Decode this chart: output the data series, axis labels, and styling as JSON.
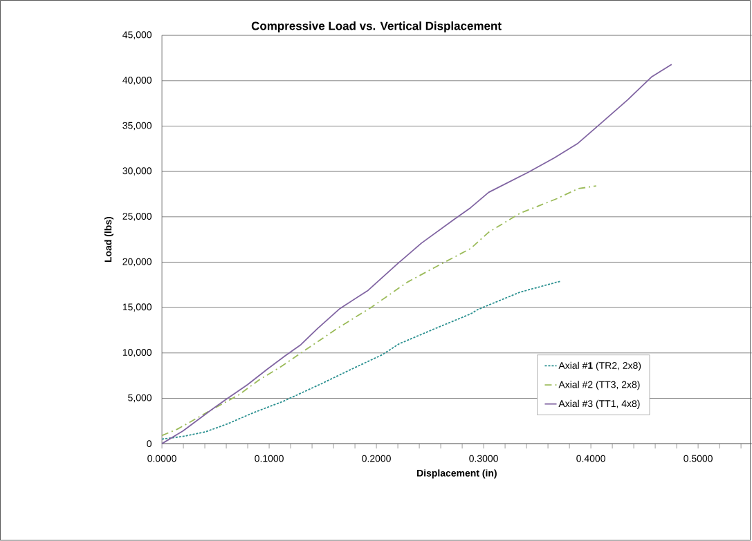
{
  "chart_data": {
    "type": "line",
    "title": "Compressive Load vs. Vertical Displacement",
    "xlabel": "Displacement (in)",
    "ylabel": "Load (lbs)",
    "xlim": [
      0,
      0.55
    ],
    "ylim": [
      0,
      45000
    ],
    "xticks": [
      {
        "value": 0,
        "label": "0.0000"
      },
      {
        "value": 0.02,
        "label": null
      },
      {
        "value": 0.04,
        "label": null
      },
      {
        "value": 0.06,
        "label": null
      },
      {
        "value": 0.08,
        "label": null
      },
      {
        "value": 0.1,
        "label": "0.1000"
      },
      {
        "value": 0.12,
        "label": null
      },
      {
        "value": 0.14,
        "label": null
      },
      {
        "value": 0.16,
        "label": null
      },
      {
        "value": 0.18,
        "label": null
      },
      {
        "value": 0.2,
        "label": "0.2000"
      },
      {
        "value": 0.22,
        "label": null
      },
      {
        "value": 0.24,
        "label": null
      },
      {
        "value": 0.26,
        "label": null
      },
      {
        "value": 0.28,
        "label": null
      },
      {
        "value": 0.3,
        "label": "0.3000"
      },
      {
        "value": 0.32,
        "label": null
      },
      {
        "value": 0.34,
        "label": null
      },
      {
        "value": 0.36,
        "label": null
      },
      {
        "value": 0.38,
        "label": null
      },
      {
        "value": 0.4,
        "label": "0.4000"
      },
      {
        "value": 0.42,
        "label": null
      },
      {
        "value": 0.44,
        "label": null
      },
      {
        "value": 0.46,
        "label": null
      },
      {
        "value": 0.48,
        "label": null
      },
      {
        "value": 0.5,
        "label": "0.5000"
      },
      {
        "value": 0.52,
        "label": null
      },
      {
        "value": 0.54,
        "label": null
      }
    ],
    "yticks": [
      0,
      {
        "value": 5000,
        "label": "5,000"
      },
      {
        "value": 10000,
        "label": "10,000"
      },
      {
        "value": 15000,
        "label": "15,000"
      },
      {
        "value": 20000,
        "label": "20,000"
      },
      {
        "value": 25000,
        "label": "25,000"
      },
      {
        "value": 30000,
        "label": "30,000"
      },
      {
        "value": 35000,
        "label": "35,000"
      },
      {
        "value": 40000,
        "label": "40,000"
      },
      {
        "value": 45000,
        "label": "45,000"
      }
    ],
    "grid": "y",
    "legend": "bottom right",
    "series": [
      {
        "name": "Axial #**1** (TR2, 2x8)",
        "color": "#2a9090",
        "line_style": "dotted",
        "x": [
          0,
          0.0196,
          0.0406,
          0.0615,
          0.085,
          0.1138,
          0.1504,
          0.1766,
          0.2054,
          0.2211,
          0.2551,
          0.2878,
          0.2949,
          0.334,
          0.3683,
          0.372
        ],
        "values": [
          500,
          800,
          1300,
          2200,
          3400,
          4700,
          6700,
          8200,
          9800,
          11000,
          12700,
          14300,
          14800,
          16700,
          17800,
          17900
        ]
      },
      {
        "name": "Axial #2 (TT3, 2x8)",
        "color": "#9bbb59",
        "line_style": "dashed",
        "x": [
          0,
          0.0144,
          0.0235,
          0.0458,
          0.072,
          0.0903,
          0.1112,
          0.1347,
          0.1635,
          0.1949,
          0.2289,
          0.2603,
          0.2878,
          0.3047,
          0.334,
          0.3683,
          0.3879,
          0.405
        ],
        "values": [
          900,
          1600,
          2200,
          3700,
          5400,
          7000,
          8500,
          10400,
          12700,
          15000,
          17800,
          19800,
          21500,
          23300,
          25400,
          27000,
          28100,
          28400
        ]
      },
      {
        "name": "Axial #3 (TT1, 4x8)",
        "color": "#8064a2",
        "line_style": "solid",
        "x": [
          0,
          0.0196,
          0.0458,
          0.0589,
          0.0798,
          0.0981,
          0.1151,
          0.1295,
          0.1452,
          0.1661,
          0.1923,
          0.2185,
          0.242,
          0.2734,
          0.2878,
          0.3047,
          0.3414,
          0.3659,
          0.3879,
          0.4074,
          0.4344,
          0.4564,
          0.4753
        ],
        "values": [
          0,
          1400,
          3700,
          4800,
          6500,
          8200,
          9700,
          10900,
          12700,
          14900,
          16900,
          19700,
          22100,
          24800,
          26000,
          27700,
          29900,
          31500,
          33100,
          35100,
          37900,
          40400,
          41800
        ]
      }
    ]
  }
}
